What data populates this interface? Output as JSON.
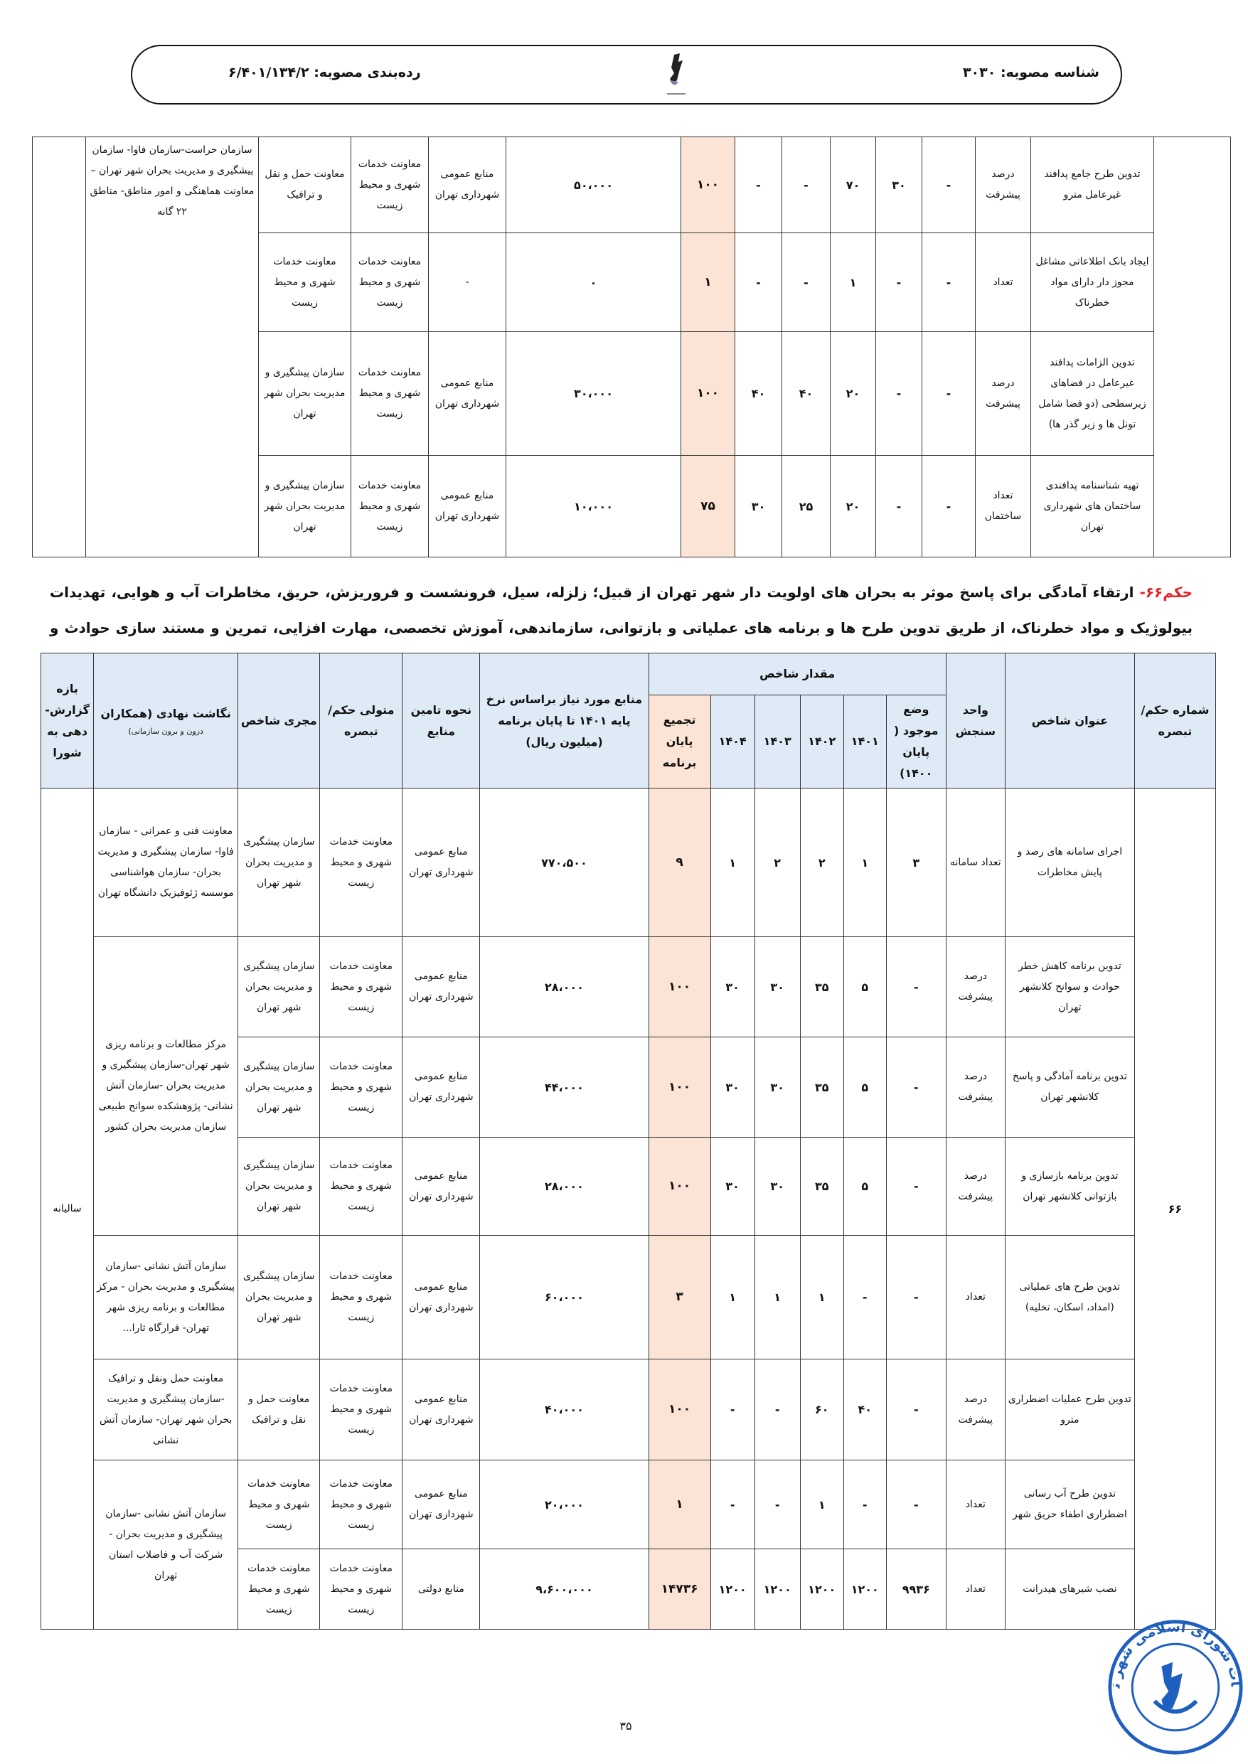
{
  "header": {
    "approval_id": "شناسه مصوبه: ۳۰۳۰",
    "classification": "رده‌بندی مصوبه: ۶/۴۰۱/۱۳۴/۲",
    "logo_caption": "شورای اسلامی شهر تهران"
  },
  "colors": {
    "header_bg": "#deeaf6",
    "total_bg": "#fbe4d5",
    "hokm_red": "#e32222",
    "stamp_blue": "#1f5fbf"
  },
  "table1": {
    "negasht": "سازمان حراست-سازمان فاوا- سازمان پیشگیری و مدیریت بحران شهر تهران – معاونت هماهنگی و امور مناطق- مناطق ۲۲ گانه",
    "rows": [
      {
        "title": "تدوین طرح جامع پدافند غیرعامل مترو",
        "unit": "درصد پیشرفت",
        "vals": [
          "-",
          "۳۰",
          "۷۰",
          "-",
          "-"
        ],
        "total": "۱۰۰",
        "budget": "۵۰،۰۰۰",
        "source": "منابع عمومی شهرداری تهران",
        "motavalli": "معاونت خدمات شهری و محیط زیست",
        "mojri": "معاونت حمل و نقل و ترافیک"
      },
      {
        "title": "ایجاد بانک اطلاعاتی مشاغل مجوز دار دارای مواد خطرناک",
        "unit": "تعداد",
        "vals": [
          "-",
          "-",
          "۱",
          "-",
          "-"
        ],
        "total": "۱",
        "budget": "۰",
        "source": "-",
        "motavalli": "معاونت خدمات شهری و محیط زیست",
        "mojri": "معاونت خدمات شهری و محیط زیست"
      },
      {
        "title": "تدوین الزامات پدافند غیرعامل در فضاهای زیرسطحی (دو فضا شامل تونل ها و زیر گذر ها)",
        "unit": "درصد پیشرفت",
        "vals": [
          "-",
          "-",
          "۲۰",
          "۴۰",
          "۴۰"
        ],
        "total": "۱۰۰",
        "budget": "۳۰،۰۰۰",
        "source": "منابع عمومی شهرداری تهران",
        "motavalli": "معاونت خدمات شهری و محیط زیست",
        "mojri": "سازمان پیشگیری و مدیریت بحران شهر تهران"
      },
      {
        "title": "تهیه شناسنامه پدافندی ساختمان های شهرداری تهران",
        "unit": "تعداد ساختمان",
        "vals": [
          "-",
          "-",
          "۲۰",
          "۲۵",
          "۳۰"
        ],
        "total": "۷۵",
        "budget": "۱۰،۰۰۰",
        "source": "منابع عمومی شهرداری تهران",
        "motavalli": "معاونت خدمات شهری و محیط زیست",
        "mojri": "سازمان پیشگیری و مدیریت بحران شهر تهران"
      }
    ]
  },
  "hokm": {
    "label": "حکم۶۶-",
    "text": " ارتقاء آمادگی برای پاسخ موثر به بحران های اولویت دار شهر تهران از قبیل؛ زلزله، سیل، فرونشست و فروریزش، حریق، مخاطرات آب و هوایی، تهدیدات بیولوژیک و مواد خطرناک، از طریق تدوین طرح ها و برنامه های عملیاتی و بازتوانی، سازماندهی، آموزش تخصصی، مهارت افزایی، تمرین و مستند سازی حوادث و بحران ها در طول سال های برنامه"
  },
  "table2": {
    "headers": {
      "shomareh": "شماره حکم/تبصره",
      "title": "عنوان شاخص",
      "unit": "واحد سنجش",
      "group": "مقدار شاخص",
      "vaz": "وضع موجود ( پایان ۱۴۰۰)",
      "y1401": "۱۴۰۱",
      "y1402": "۱۴۰۲",
      "y1403": "۱۴۰۳",
      "y1404": "۱۴۰۴",
      "total": "تجمیع پایان برنامه",
      "budget": "منابع مورد نیاز براساس نرخ پایه ۱۴۰۱ تا پایان برنامه (میلیون ریال)",
      "nahve": "نحوه تامین منابع",
      "motavalli": "متولی حکم/تبصره",
      "mojri": "مجری شاخص",
      "negasht": "نگاشت نهادی (همکاران",
      "negasht_sub": "درون و برون سازمانی)",
      "baze": "بازه گزارش-دهی به شورا"
    },
    "shomareh": "۶۶",
    "baze": "سالیانه",
    "negasht_groups": [
      "معاونت فنی و عمرانی - سازمان فاوا- سازمان پیشگیری و مدیریت بحران- سازمان هواشناسی موسسه ژئوفیزیک دانشگاه تهران",
      "مرکز مطالعات و برنامه ریزی شهر تهران-سازمان پیشگیری و مدیریت بحران -سازمان آتش نشانی- پژوهشکده سوانح طبیعی سازمان مدیریت بحران کشور",
      "سازمان آتش نشانی -سازمان پیشگیری و مدیریت بحران - مرکز مطالعات و برنامه ریزی شهر تهران- قرارگاه ثارا...",
      "معاونت حمل ونقل و ترافیک -سازمان پیشگیری و مدیریت بحران شهر تهران- سازمان آتش نشانی",
      "سازمان آتش نشانی -سازمان پیشگیری و مدیریت بحران - شرکت آب و فاضلاب استان تهران"
    ],
    "rows": [
      {
        "title": "اجرای سامانه های رصد و پایش مخاطرات",
        "unit": "تعداد سامانه",
        "vals": [
          "۳",
          "۱",
          "۲",
          "۲",
          "۱"
        ],
        "total": "۹",
        "budget": "۷۷۰،۵۰۰",
        "source": "منابع عمومی شهرداری تهران",
        "motavalli": "معاونت خدمات شهری و محیط زیست",
        "mojri": "سازمان پیشگیری و مدیریت بحران شهر تهران"
      },
      {
        "title": "تدوین برنامه کاهش خطر حوادث و سوانح کلانشهر تهران",
        "unit": "درصد پیشرفت",
        "vals": [
          "-",
          "۵",
          "۳۵",
          "۳۰",
          "۳۰"
        ],
        "total": "۱۰۰",
        "budget": "۲۸،۰۰۰",
        "source": "منابع عمومی شهرداری تهران",
        "motavalli": "معاونت خدمات شهری و محیط زیست",
        "mojri": "سازمان پیشگیری و مدیریت بحران شهر تهران"
      },
      {
        "title": "تدوین برنامه آمادگی و پاسخ کلانشهر تهران",
        "unit": "درصد پیشرفت",
        "vals": [
          "-",
          "۵",
          "۳۵",
          "۳۰",
          "۳۰"
        ],
        "total": "۱۰۰",
        "budget": "۴۴،۰۰۰",
        "source": "منابع عمومی شهرداری تهران",
        "motavalli": "معاونت خدمات شهری و محیط زیست",
        "mojri": "سازمان پیشگیری و مدیریت بحران شهر تهران"
      },
      {
        "title": "تدوین برنامه بازسازی و بازتوانی کلانشهر تهران",
        "unit": "درصد پیشرفت",
        "vals": [
          "-",
          "۵",
          "۳۵",
          "۳۰",
          "۳۰"
        ],
        "total": "۱۰۰",
        "budget": "۲۸،۰۰۰",
        "source": "منابع عمومی شهرداری تهران",
        "motavalli": "معاونت خدمات شهری و محیط زیست",
        "mojri": "سازمان پیشگیری و مدیریت بحران شهر تهران"
      },
      {
        "title": "تدوین طرح های عملیاتی (امداد، اسکان، تخلیه)",
        "unit": "تعداد",
        "vals": [
          "-",
          "-",
          "۱",
          "۱",
          "۱"
        ],
        "total": "۳",
        "budget": "۶۰،۰۰۰",
        "source": "منابع عمومی شهرداری تهران",
        "motavalli": "معاونت خدمات شهری و محیط زیست",
        "mojri": "سازمان پیشگیری و مدیریت بحران شهر تهران"
      },
      {
        "title": "تدوین طرح عملیات اضطراری مترو",
        "unit": "درصد پیشرفت",
        "vals": [
          "-",
          "۴۰",
          "۶۰",
          "-",
          "-"
        ],
        "total": "۱۰۰",
        "budget": "۴۰،۰۰۰",
        "source": "منابع عمومی شهرداری تهران",
        "motavalli": "معاونت خدمات شهری و محیط زیست",
        "mojri": "معاونت حمل و نقل و ترافیک"
      },
      {
        "title": "تدوین طرح آب رسانی اضطراری اطفاء حریق شهر",
        "unit": "تعداد",
        "vals": [
          "-",
          "-",
          "۱",
          "-",
          "-"
        ],
        "total": "۱",
        "budget": "۲۰،۰۰۰",
        "source": "منابع عمومی شهرداری تهران",
        "motavalli": "معاونت خدمات شهری و محیط زیست",
        "mojri": "معاونت خدمات شهری و محیط زیست"
      },
      {
        "title": "نصب شیرهای هیدرانت",
        "unit": "تعداد",
        "vals": [
          "۹۹۳۶",
          "۱۲۰۰",
          "۱۲۰۰",
          "۱۲۰۰",
          "۱۲۰۰"
        ],
        "total": "۱۴۷۳۶",
        "budget": "۹،۶۰۰،۰۰۰",
        "source": "منابع دولتی",
        "motavalli": "معاونت خدمات شهری و محیط زیست",
        "mojri": "معاونت خدمات شهری و محیط زیست"
      }
    ]
  },
  "footer": {
    "page_number": "۳۵"
  },
  "stamp": {
    "text": "مصوبات شورای اسلامی شهر تهران"
  }
}
